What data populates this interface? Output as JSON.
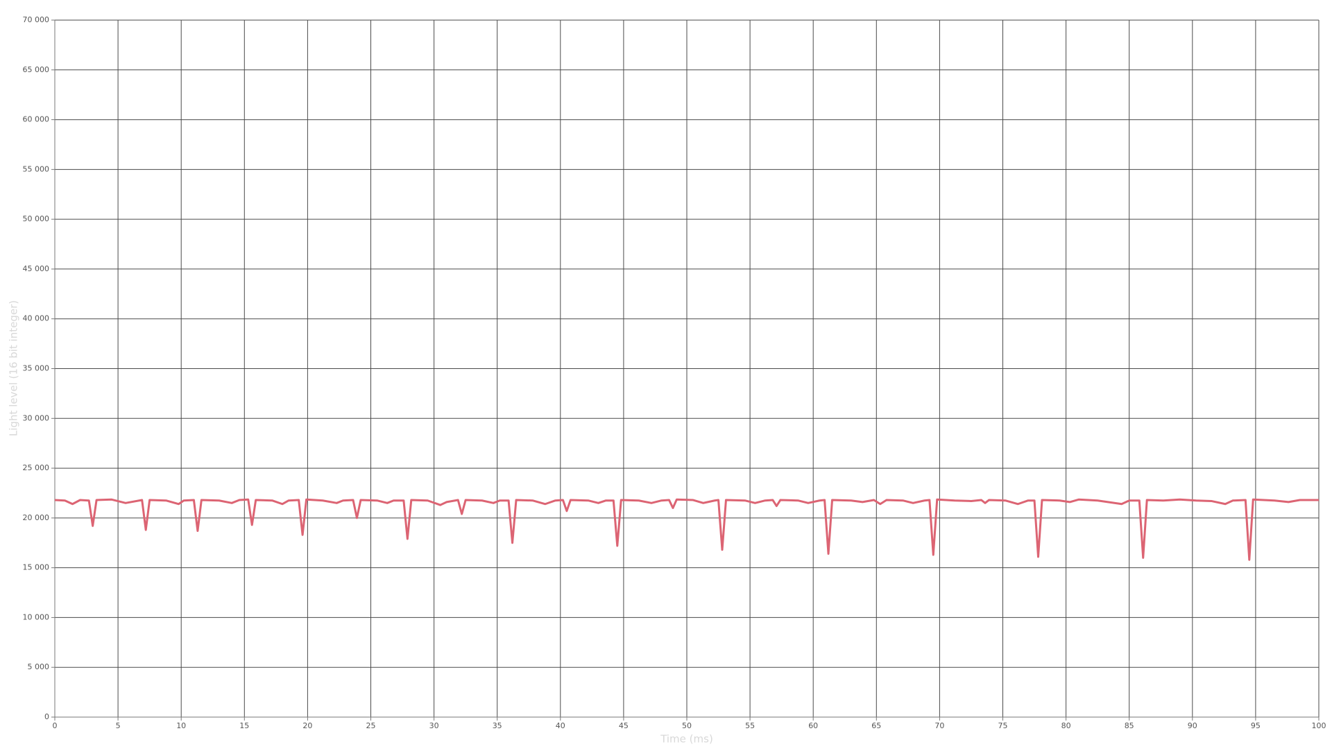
{
  "chart_data": {
    "type": "line",
    "x_label": "Time (ms)",
    "y_label": "Light level (16 bit integer)",
    "x": [
      0,
      0.8,
      1.4,
      2.0,
      2.7,
      3.0,
      3.3,
      4.5,
      5.6,
      6.9,
      7.2,
      7.5,
      8.8,
      9.8,
      10.2,
      11.0,
      11.3,
      11.6,
      13.0,
      14.0,
      14.6,
      15.3,
      15.6,
      15.9,
      17.2,
      18.0,
      18.5,
      19.3,
      19.6,
      19.9,
      21.2,
      22.3,
      22.8,
      23.6,
      23.9,
      24.2,
      25.5,
      26.3,
      26.8,
      27.6,
      27.9,
      28.2,
      29.5,
      30.5,
      31.0,
      31.9,
      32.2,
      32.5,
      33.8,
      34.7,
      35.2,
      35.9,
      36.2,
      36.5,
      37.8,
      38.8,
      39.6,
      40.2,
      40.5,
      40.8,
      42.2,
      43.0,
      43.6,
      44.2,
      44.5,
      44.8,
      46.2,
      47.2,
      48.0,
      48.6,
      48.9,
      49.2,
      50.5,
      51.3,
      52.2,
      52.5,
      52.8,
      53.1,
      54.6,
      55.4,
      56.2,
      56.8,
      57.1,
      57.4,
      58.8,
      59.6,
      60.5,
      60.9,
      61.2,
      61.5,
      63.0,
      63.9,
      64.8,
      65.3,
      65.8,
      67.1,
      67.9,
      68.8,
      69.2,
      69.5,
      69.8,
      71.2,
      72.5,
      73.3,
      73.6,
      73.9,
      75.2,
      76.2,
      77.0,
      77.5,
      77.8,
      78.1,
      79.5,
      80.3,
      81.0,
      82.5,
      84.4,
      85.0,
      85.8,
      86.1,
      86.4,
      87.7,
      89.0,
      90.3,
      91.5,
      92.6,
      93.2,
      94.2,
      94.5,
      94.8,
      96.5,
      97.6,
      98.5,
      100
    ],
    "series": [
      {
        "name": "Light level",
        "color": "#dc6473",
        "values": [
          21800,
          21750,
          21400,
          21800,
          21750,
          19200,
          21800,
          21850,
          21500,
          21800,
          18800,
          21800,
          21750,
          21400,
          21750,
          21800,
          18700,
          21800,
          21750,
          21500,
          21800,
          21850,
          19300,
          21800,
          21750,
          21400,
          21750,
          21800,
          18300,
          21850,
          21750,
          21500,
          21750,
          21800,
          20000,
          21800,
          21750,
          21500,
          21750,
          21750,
          17900,
          21800,
          21750,
          21300,
          21600,
          21800,
          20400,
          21800,
          21750,
          21500,
          21750,
          21750,
          17500,
          21800,
          21750,
          21400,
          21750,
          21800,
          20700,
          21800,
          21750,
          21500,
          21750,
          21750,
          17200,
          21800,
          21750,
          21500,
          21750,
          21800,
          21000,
          21850,
          21800,
          21500,
          21750,
          21800,
          16800,
          21800,
          21750,
          21500,
          21750,
          21800,
          21200,
          21800,
          21750,
          21500,
          21750,
          21800,
          16400,
          21800,
          21750,
          21600,
          21800,
          21400,
          21800,
          21750,
          21500,
          21750,
          21800,
          16300,
          21850,
          21750,
          21700,
          21800,
          21500,
          21800,
          21750,
          21400,
          21750,
          21750,
          16100,
          21800,
          21750,
          21600,
          21850,
          21750,
          21400,
          21750,
          21750,
          16000,
          21800,
          21750,
          21850,
          21750,
          21700,
          21400,
          21750,
          21800,
          15800,
          21850,
          21750,
          21600,
          21800,
          21800
        ]
      }
    ],
    "xlim": [
      0,
      100
    ],
    "xticks": [
      0,
      5,
      10,
      15,
      20,
      25,
      30,
      35,
      40,
      45,
      50,
      55,
      60,
      65,
      70,
      75,
      80,
      85,
      90,
      95,
      100
    ],
    "ylim": [
      0,
      70000
    ],
    "yticks": [
      0,
      {
        "value": 5000,
        "label": "5 000"
      },
      {
        "value": 10000,
        "label": "10 000"
      },
      {
        "value": 15000,
        "label": "15 000"
      },
      {
        "value": 20000,
        "label": "20 000"
      },
      {
        "value": 25000,
        "label": "25 000"
      },
      {
        "value": 30000,
        "label": "30 000"
      },
      {
        "value": 35000,
        "label": "35 000"
      },
      {
        "value": 40000,
        "label": "40 000"
      },
      {
        "value": 45000,
        "label": "45 000"
      },
      {
        "value": 50000,
        "label": "50 000"
      },
      {
        "value": 55000,
        "label": "55 000"
      },
      {
        "value": 60000,
        "label": "60 000"
      },
      {
        "value": 65000,
        "label": "65 000"
      },
      {
        "value": 70000,
        "label": "70 000"
      }
    ],
    "grid": true
  }
}
